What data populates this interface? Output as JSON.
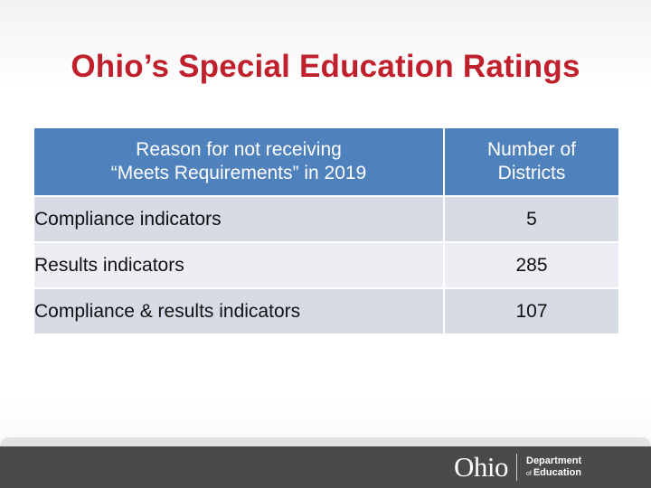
{
  "title": "Ohio’s Special Education Ratings",
  "table": {
    "headers": {
      "reason": "Reason for not receiving\n“Meets Requirements” in 2019",
      "count": "Number of\nDistricts"
    },
    "rows": [
      {
        "reason": "Compliance indicators",
        "count": "5"
      },
      {
        "reason": "Results indicators",
        "count": "285"
      },
      {
        "reason": "Compliance & results indicators",
        "count": "107"
      }
    ]
  },
  "footer": {
    "logo": {
      "ohio": "Ohio",
      "department": "Department",
      "of": "of",
      "education": "Education"
    }
  },
  "colors": {
    "title": "#c0202b",
    "header_bg": "#4f81bd",
    "row_dark": "#d6dbe6",
    "row_light": "#eceef4",
    "footer_bg": "#4a4a4a"
  }
}
